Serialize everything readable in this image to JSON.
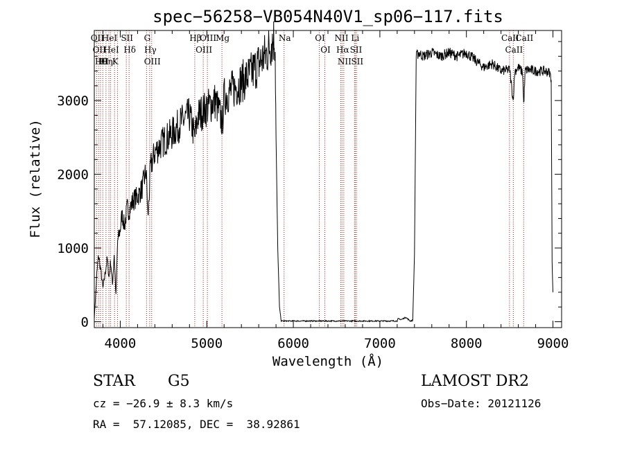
{
  "chart_data": {
    "type": "line",
    "title": "spec−56258−VB054N40V1_sp06−117.fits",
    "xlabel": "Wavelength (Å)",
    "ylabel": "Flux (relative)",
    "xlim": [
      3700,
      9100
    ],
    "ylim": [
      -80,
      3950
    ],
    "xticks": [
      4000,
      5000,
      6000,
      7000,
      8000,
      9000
    ],
    "yticks": [
      0,
      1000,
      2000,
      3000
    ],
    "xtick_labels": [
      "4000",
      "5000",
      "6000",
      "7000",
      "8000",
      "9000"
    ],
    "ytick_labels": [
      "0",
      "1000",
      "2000",
      "3000"
    ],
    "grid": false,
    "series": [
      {
        "x": [
          3700,
          3730,
          3750,
          3780,
          3800,
          3830,
          3850,
          3870,
          3890,
          3910,
          3930,
          3950,
          3970,
          4000,
          4020,
          4050,
          4080,
          4100,
          4150,
          4200,
          4250,
          4300,
          4320,
          4350,
          4400,
          4500,
          4600,
          4700,
          4800,
          4860,
          4900,
          5000,
          5100,
          5180,
          5200,
          5300,
          5400,
          5500,
          5600,
          5700,
          5750,
          5780,
          5790,
          5800,
          5820,
          5840,
          5860,
          5900,
          6000,
          6200,
          6500,
          6800,
          7000,
          7200,
          7210,
          7250,
          7300,
          7350,
          7380,
          7400,
          7420,
          7450,
          7500,
          7600,
          7700,
          7800,
          7900,
          8000,
          8100,
          8200,
          8300,
          8400,
          8500,
          8540,
          8560,
          8600,
          8650,
          8662,
          8680,
          8700,
          8800,
          8900,
          8960,
          8980,
          8990,
          9000
        ],
        "values": [
          50,
          650,
          900,
          650,
          450,
          700,
          850,
          600,
          820,
          500,
          920,
          350,
          1100,
          1250,
          1450,
          1300,
          1550,
          1500,
          1650,
          1700,
          1800,
          2050,
          1400,
          2100,
          2300,
          2450,
          2550,
          2700,
          2800,
          2500,
          2800,
          2900,
          3000,
          2700,
          3050,
          3150,
          3250,
          3350,
          3500,
          3650,
          3800,
          3850,
          3700,
          2500,
          1000,
          200,
          10,
          10,
          10,
          10,
          10,
          10,
          10,
          10,
          40,
          30,
          60,
          10,
          20,
          900,
          3600,
          3650,
          3600,
          3650,
          3600,
          3650,
          3600,
          3650,
          3550,
          3450,
          3500,
          3400,
          3420,
          3000,
          3400,
          3450,
          3380,
          2950,
          3400,
          3420,
          3400,
          3400,
          3380,
          3300,
          800,
          400
        ]
      }
    ],
    "lines": [
      {
        "wl": 3727,
        "label": "OII"
      },
      {
        "wl": 3750,
        "label": "OII"
      },
      {
        "wl": 3771,
        "label": "Hθ"
      },
      {
        "wl": 3798,
        "label": "HI"
      },
      {
        "wl": 3835,
        "label": "Hη"
      },
      {
        "wl": 3869,
        "label": "HeI"
      },
      {
        "wl": 3889,
        "label": "HeI"
      },
      {
        "wl": 3934,
        "label": "K"
      },
      {
        "wl": 3969,
        "label": ""
      },
      {
        "wl": 4070,
        "label": "SII"
      },
      {
        "wl": 4102,
        "label": "Hδ"
      },
      {
        "wl": 4304,
        "label": "G"
      },
      {
        "wl": 4340,
        "label": "Hγ"
      },
      {
        "wl": 4363,
        "label": "OIII"
      },
      {
        "wl": 4861,
        "label": "Hβ"
      },
      {
        "wl": 4959,
        "label": "OIII"
      },
      {
        "wl": 5007,
        "label": "OIII"
      },
      {
        "wl": 5175,
        "label": "Mg"
      },
      {
        "wl": 5893,
        "label": "Na"
      },
      {
        "wl": 6300,
        "label": "OI"
      },
      {
        "wl": 6364,
        "label": "OI"
      },
      {
        "wl": 6548,
        "label": "NII"
      },
      {
        "wl": 6563,
        "label": "Hα"
      },
      {
        "wl": 6583,
        "label": "NII"
      },
      {
        "wl": 6707,
        "label": "Li"
      },
      {
        "wl": 6716,
        "label": "SII"
      },
      {
        "wl": 6731,
        "label": "SII"
      },
      {
        "wl": 8498,
        "label": "CaII"
      },
      {
        "wl": 8542,
        "label": "CaII"
      },
      {
        "wl": 8662,
        "label": "CaII"
      }
    ],
    "colors": {
      "spectrum": "#000000",
      "line_markers": "#a0211b",
      "axes": "#000000"
    }
  },
  "info": {
    "class": "STAR",
    "subclass": "G5",
    "survey": "LAMOST DR2",
    "cz": "cz = −26.9 ± 8.3 km/s",
    "obs_date": "Obs−Date: 20121126",
    "radec": "RA =  57.12085, DEC =  38.92861"
  }
}
